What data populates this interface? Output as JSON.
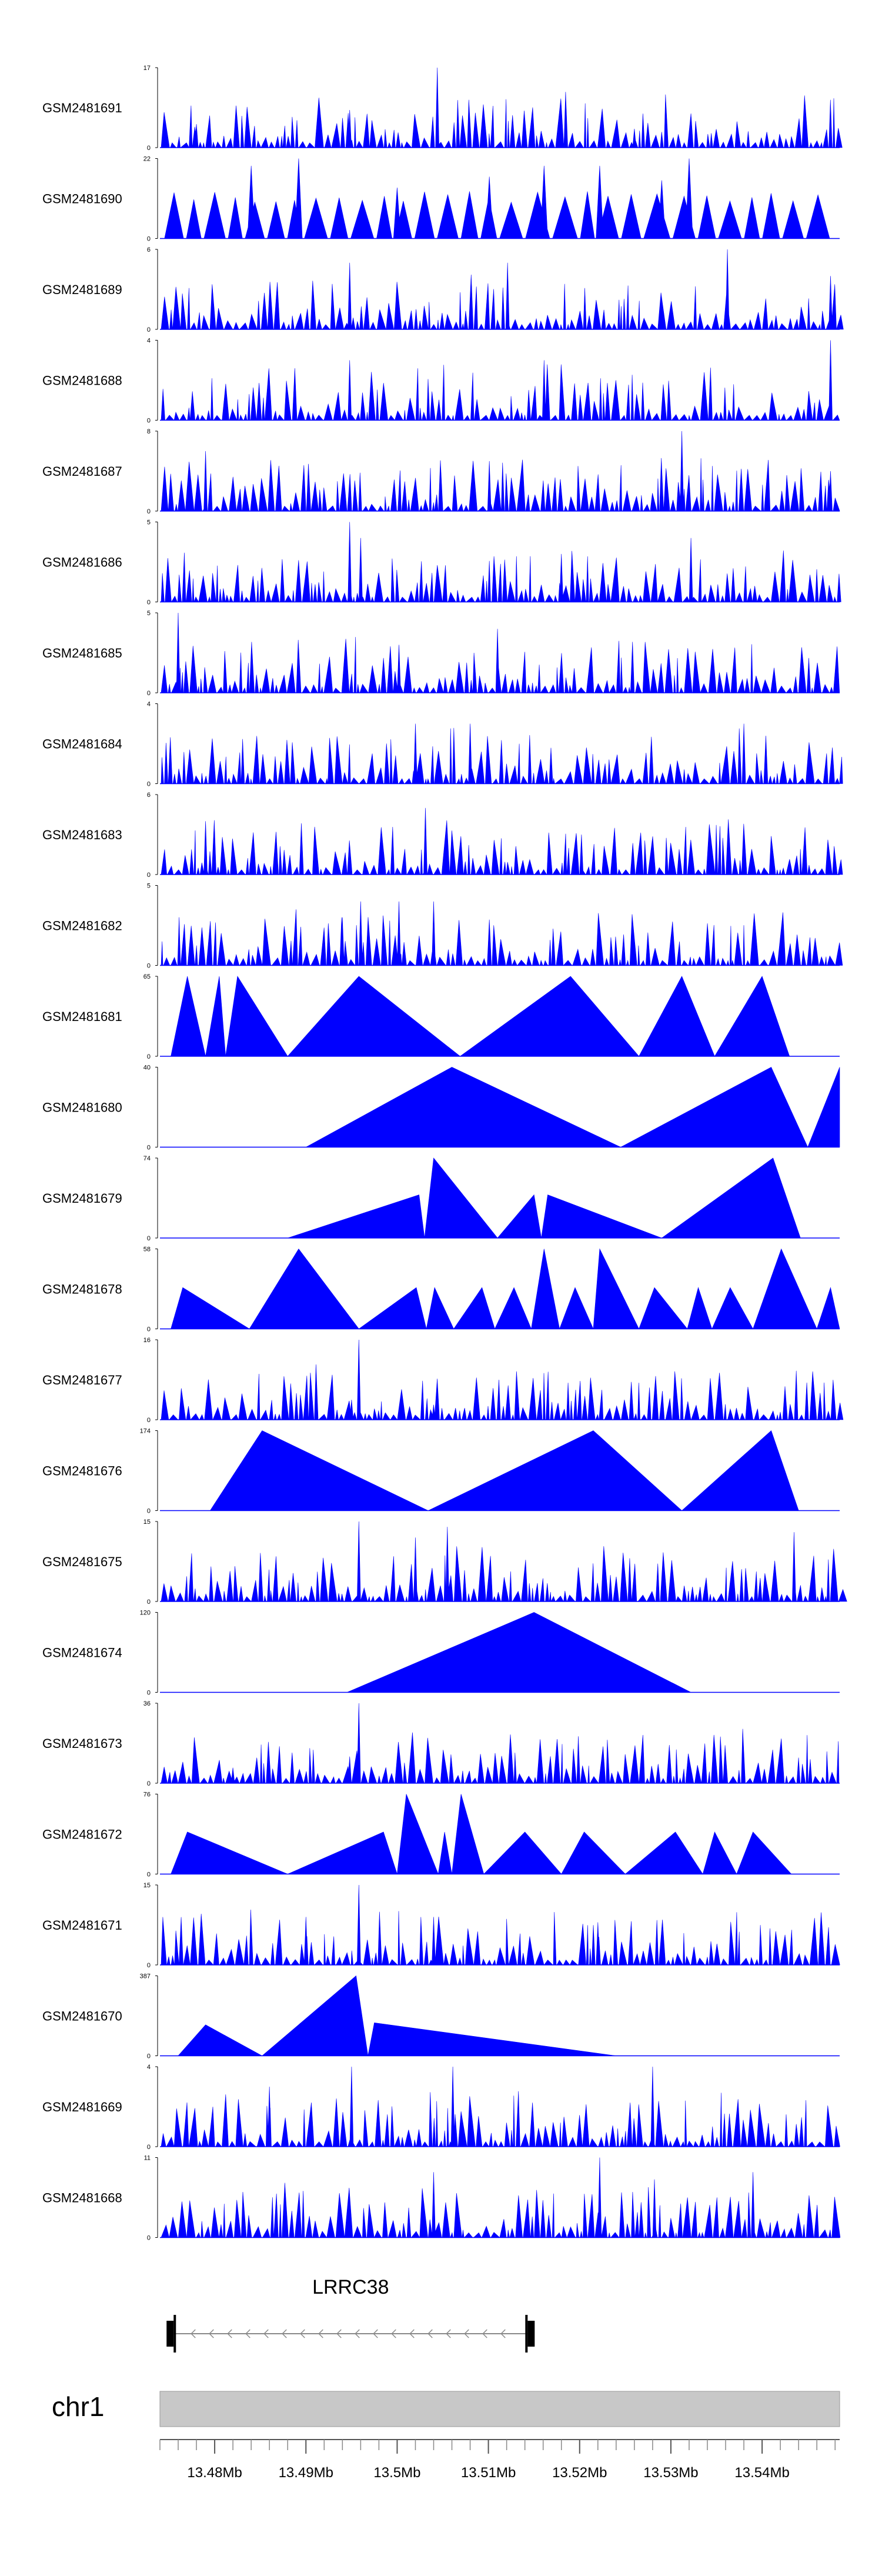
{
  "chart_data": {
    "type": "area",
    "color": "#0000ff",
    "x_range": [
      13.474,
      13.5485
    ],
    "x_unit": "Mb",
    "tracks": [
      {
        "name": "GSM2481691",
        "ymax": 17,
        "style": "dense",
        "seed": 11,
        "spikes": [
          [
            13.5044,
            17
          ],
          [
            13.4948,
            8
          ],
          [
            13.5475,
            6
          ],
          [
            13.478,
            5
          ],
          [
            13.526,
            4
          ]
        ]
      },
      {
        "name": "GSM2481690",
        "ymax": 22,
        "style": "tri",
        "seed": 12,
        "spikes": [
          [
            13.532,
            22
          ],
          [
            13.4892,
            22
          ],
          [
            13.484,
            20
          ],
          [
            13.5161,
            20
          ],
          [
            13.5222,
            20
          ],
          [
            13.5101,
            17
          ],
          [
            13.529,
            16
          ],
          [
            13.5,
            14
          ]
        ]
      },
      {
        "name": "GSM2481689",
        "ymax": 6,
        "style": "dense",
        "seed": 13,
        "spikes": [
          [
            13.5362,
            6
          ],
          [
            13.4948,
            5
          ],
          [
            13.5121,
            5
          ],
          [
            13.5475,
            4
          ]
        ]
      },
      {
        "name": "GSM2481688",
        "ymax": 4,
        "style": "dense",
        "seed": 14,
        "spikes": [
          [
            13.5475,
            4
          ],
          [
            13.4948,
            3
          ],
          [
            13.5161,
            3
          ]
        ]
      },
      {
        "name": "GSM2481687",
        "ymax": 8,
        "style": "dense",
        "seed": 15,
        "spikes": [
          [
            13.5312,
            8
          ],
          [
            13.479,
            6
          ],
          [
            13.5101,
            5
          ],
          [
            13.5475,
            4
          ]
        ]
      },
      {
        "name": "GSM2481686",
        "ymax": 5,
        "style": "dense",
        "seed": 16,
        "spikes": [
          [
            13.4948,
            5
          ],
          [
            13.496,
            4
          ],
          [
            13.5322,
            4
          ],
          [
            13.518,
            3
          ]
        ]
      },
      {
        "name": "GSM2481685",
        "ymax": 5,
        "style": "dense",
        "seed": 17,
        "spikes": [
          [
            13.476,
            5
          ],
          [
            13.511,
            4
          ],
          [
            13.5002,
            3
          ]
        ]
      },
      {
        "name": "GSM2481684",
        "ymax": 4,
        "style": "dense",
        "seed": 18,
        "spikes": [
          [
            13.502,
            3
          ],
          [
            13.508,
            3
          ],
          [
            13.538,
            3
          ]
        ]
      },
      {
        "name": "GSM2481683",
        "ymax": 6,
        "style": "dense",
        "seed": 19,
        "spikes": [
          [
            13.5031,
            5
          ],
          [
            13.479,
            4
          ],
          [
            13.5202,
            3
          ]
        ]
      },
      {
        "name": "GSM2481682",
        "ymax": 5,
        "style": "dense",
        "seed": 20,
        "spikes": [
          [
            13.496,
            4
          ],
          [
            13.504,
            4
          ],
          [
            13.5002,
            4
          ],
          [
            13.494,
            3
          ]
        ]
      },
      {
        "name": "GSM2481681",
        "ymax": 65,
        "style": "tri",
        "seed": 21,
        "tris": [
          [
            13.4752,
            13.477,
            13.479,
            65
          ],
          [
            13.479,
            13.4805,
            13.4812,
            65
          ],
          [
            13.4812,
            13.4825,
            13.488,
            65
          ],
          [
            13.488,
            13.4958,
            13.5069,
            65
          ],
          [
            13.5069,
            13.519,
            13.5265,
            65
          ],
          [
            13.5265,
            13.5312,
            13.5348,
            65
          ],
          [
            13.5348,
            13.54,
            13.543,
            65
          ]
        ]
      },
      {
        "name": "GSM2481680",
        "ymax": 40,
        "style": "tri",
        "seed": 22,
        "tris": [
          [
            13.49,
            13.506,
            13.5245,
            40
          ],
          [
            13.5245,
            13.541,
            13.545,
            40
          ],
          [
            13.545,
            13.5485,
            13.5485,
            40
          ]
        ]
      },
      {
        "name": "GSM2481679",
        "ymax": 74,
        "style": "tri",
        "seed": 23,
        "tris": [
          [
            13.488,
            13.5024,
            13.503,
            40
          ],
          [
            13.503,
            13.504,
            13.511,
            74
          ],
          [
            13.511,
            13.515,
            13.5158,
            40
          ],
          [
            13.5158,
            13.5165,
            13.529,
            40
          ],
          [
            13.529,
            13.5412,
            13.5442,
            74
          ]
        ]
      },
      {
        "name": "GSM2481678",
        "ymax": 58,
        "style": "tri",
        "seed": 23,
        "tris": [
          [
            13.4752,
            13.4765,
            13.4838,
            30
          ],
          [
            13.4838,
            13.4892,
            13.4958,
            58
          ],
          [
            13.4958,
            13.5021,
            13.5032,
            30
          ],
          [
            13.5032,
            13.5041,
            13.5062,
            30
          ],
          [
            13.5062,
            13.5093,
            13.5107,
            30
          ],
          [
            13.5107,
            13.5128,
            13.5147,
            30
          ],
          [
            13.5147,
            13.5161,
            13.5178,
            58
          ],
          [
            13.5178,
            13.5195,
            13.5215,
            30
          ],
          [
            13.5215,
            13.5222,
            13.5265,
            58
          ],
          [
            13.5265,
            13.5282,
            13.5318,
            30
          ],
          [
            13.5318,
            13.533,
            13.5345,
            30
          ],
          [
            13.5345,
            13.5365,
            13.539,
            30
          ],
          [
            13.539,
            13.5421,
            13.546,
            58
          ],
          [
            13.546,
            13.5475,
            13.5485,
            30
          ]
        ]
      },
      {
        "name": "GSM2481677",
        "ymax": 16,
        "style": "dense",
        "seed": 24,
        "spikes": [
          [
            13.4958,
            16
          ],
          [
            13.495,
            4
          ],
          [
            13.504,
            3
          ]
        ]
      },
      {
        "name": "GSM2481676",
        "ymax": 174,
        "style": "tri",
        "seed": 25,
        "tris": [
          [
            13.4795,
            13.4852,
            13.5034,
            174
          ],
          [
            13.5034,
            13.5215,
            13.5312,
            174
          ],
          [
            13.5312,
            13.541,
            13.544,
            174
          ]
        ]
      },
      {
        "name": "GSM2481675",
        "ymax": 15,
        "style": "dense",
        "seed": 26,
        "spikes": [
          [
            13.4958,
            15
          ],
          [
            13.5055,
            14
          ],
          [
            13.5435,
            13
          ],
          [
            13.502,
            12
          ]
        ]
      },
      {
        "name": "GSM2481674",
        "ymax": 120,
        "style": "tri",
        "seed": 27,
        "tris": [
          [
            13.4945,
            13.515,
            13.5322,
            120
          ]
        ]
      },
      {
        "name": "GSM2481673",
        "ymax": 36,
        "style": "dense",
        "seed": 28,
        "spikes": [
          [
            13.4958,
            36
          ],
          [
            13.4948,
            12
          ],
          [
            13.482,
            7
          ]
        ]
      },
      {
        "name": "GSM2481672",
        "ymax": 76,
        "style": "tri",
        "seed": 29,
        "tris": [
          [
            13.4752,
            13.477,
            13.488,
            40
          ],
          [
            13.488,
            13.4985,
            13.5,
            40
          ],
          [
            13.5,
            13.501,
            13.5045,
            76
          ],
          [
            13.5045,
            13.5052,
            13.506,
            40
          ],
          [
            13.506,
            13.507,
            13.5095,
            76
          ],
          [
            13.5095,
            13.514,
            13.518,
            40
          ],
          [
            13.518,
            13.5205,
            13.525,
            40
          ],
          [
            13.525,
            13.5305,
            13.5335,
            40
          ],
          [
            13.5335,
            13.5348,
            13.5372,
            40
          ],
          [
            13.5372,
            13.539,
            13.5432,
            40
          ]
        ]
      },
      {
        "name": "GSM2481671",
        "ymax": 15,
        "style": "dense",
        "seed": 30,
        "spikes": [
          [
            13.4958,
            15
          ],
          [
            13.49,
            9
          ],
          [
            13.504,
            9
          ],
          [
            13.522,
            8
          ]
        ]
      },
      {
        "name": "GSM2481670",
        "ymax": 387,
        "style": "tri",
        "seed": 31,
        "tris": [
          [
            13.476,
            13.479,
            13.4852,
            150
          ],
          [
            13.4852,
            13.4955,
            13.4968,
            387
          ],
          [
            13.4968,
            13.4975,
            13.524,
            160
          ]
        ]
      },
      {
        "name": "GSM2481669",
        "ymax": 4,
        "style": "dense",
        "seed": 32,
        "spikes": [
          [
            13.495,
            4
          ],
          [
            13.5061,
            4
          ],
          [
            13.528,
            4
          ],
          [
            13.486,
            3
          ]
        ]
      },
      {
        "name": "GSM2481668",
        "ymax": 11,
        "style": "dense",
        "seed": 33,
        "spikes": [
          [
            13.5222,
            11
          ],
          [
            13.504,
            9
          ],
          [
            13.539,
            9
          ],
          [
            13.5282,
            8
          ]
        ]
      }
    ],
    "gene": {
      "name": "LRRC38",
      "start": 13.4755,
      "end": 13.5143,
      "strand": "-"
    },
    "chromosome": {
      "name": "chr1"
    },
    "ticks": [
      13.48,
      13.49,
      13.5,
      13.51,
      13.52,
      13.53,
      13.54
    ],
    "tick_labels": [
      "13.48Mb",
      "13.49Mb",
      "13.5Mb",
      "13.51Mb",
      "13.52Mb",
      "13.53Mb",
      "13.54Mb"
    ]
  }
}
